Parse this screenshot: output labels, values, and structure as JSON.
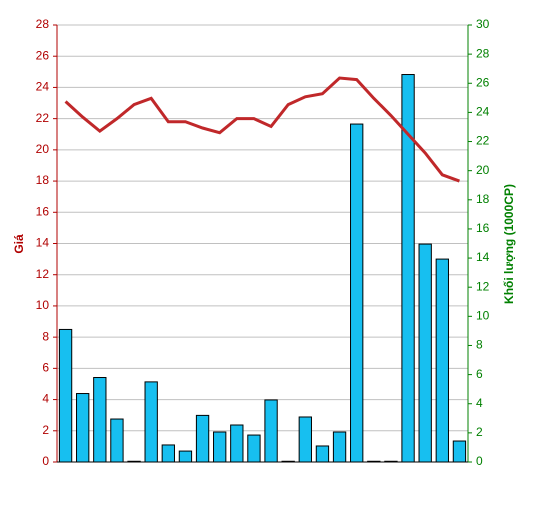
{
  "chart_data": {
    "type": "bar-line",
    "ylabel": "Giá",
    "y2label": "Khối lượng (1000CP)",
    "ylim": [
      0,
      28
    ],
    "yticks": [
      0,
      2,
      4,
      6,
      8,
      10,
      12,
      14,
      16,
      18,
      20,
      22,
      24,
      26,
      28
    ],
    "y2lim": [
      0,
      30
    ],
    "y2ticks": [
      0,
      2,
      4,
      6,
      8,
      10,
      12,
      14,
      16,
      18,
      20,
      22,
      24,
      26,
      28,
      30
    ],
    "grid": true,
    "ycolor": "#b00000",
    "y2color": "#008000",
    "series": [
      {
        "type": "bar",
        "axis": "y2",
        "color": "#17bff0",
        "values": [
          9.1,
          4.7,
          5.8,
          2.95,
          0.05,
          5.5,
          1.17,
          0.75,
          3.2,
          2.06,
          2.54,
          1.85,
          4.26,
          0.05,
          3.09,
          1.1,
          2.06,
          23.2,
          0.05,
          0.05,
          26.6,
          14.96,
          13.93,
          1.44
        ]
      },
      {
        "type": "line",
        "color": "#c0282a",
        "values": [
          23.1,
          22.1,
          21.2,
          22.0,
          22.9,
          23.3,
          21.8,
          21.8,
          21.4,
          21.1,
          22.0,
          22.0,
          21.5,
          22.9,
          23.4,
          23.6,
          24.6,
          24.5,
          23.3,
          22.2,
          21.0,
          19.8,
          18.4,
          18.0
        ]
      }
    ]
  }
}
